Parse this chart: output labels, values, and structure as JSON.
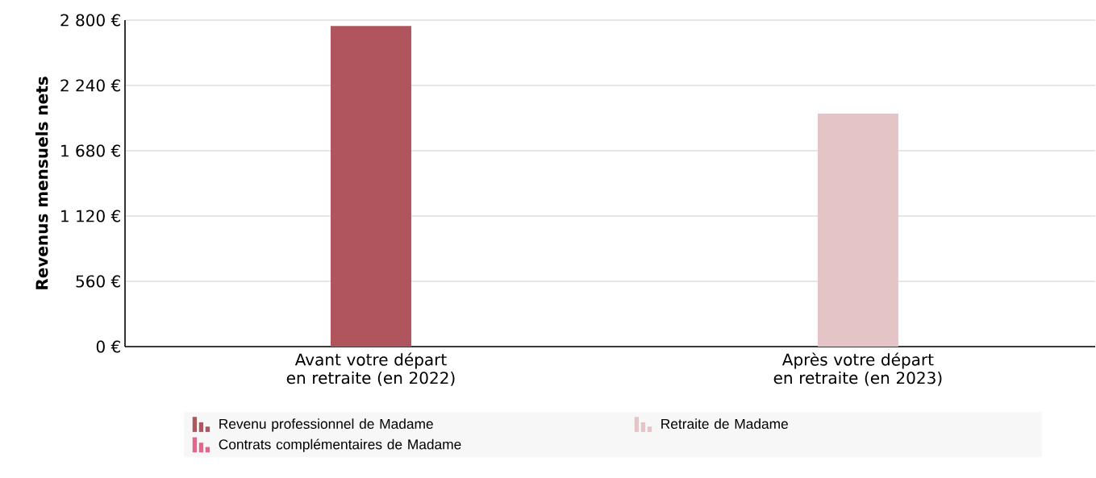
{
  "chart_data": {
    "type": "bar",
    "stacked": true,
    "ylabel": "Revenus mensuels nets",
    "categories": [
      "Avant votre départ en retraite (en 2022)",
      "Après votre départ en retraite (en 2023)"
    ],
    "series": [
      {
        "name": "Revenu professionnel de Madame",
        "color": "#b0555e",
        "values": [
          2750,
          null
        ]
      },
      {
        "name": "Retraite de Madame",
        "color": "#e4c4c6",
        "values": [
          null,
          2000
        ]
      },
      {
        "name": "Contrats complémentaires de Madame",
        "color": "#e8638c",
        "values": [
          null,
          null
        ]
      }
    ],
    "ylim": [
      0,
      2800
    ],
    "yticks": [
      {
        "value": 0,
        "label": "0 €"
      },
      {
        "value": 560,
        "label": "560 €"
      },
      {
        "value": 1120,
        "label": "1 120 €"
      },
      {
        "value": 1680,
        "label": "1 680 €"
      },
      {
        "value": 2240,
        "label": "2 240 €"
      },
      {
        "value": 2800,
        "label": "2 800 €"
      }
    ],
    "grid": "y",
    "legend": "bottom"
  }
}
